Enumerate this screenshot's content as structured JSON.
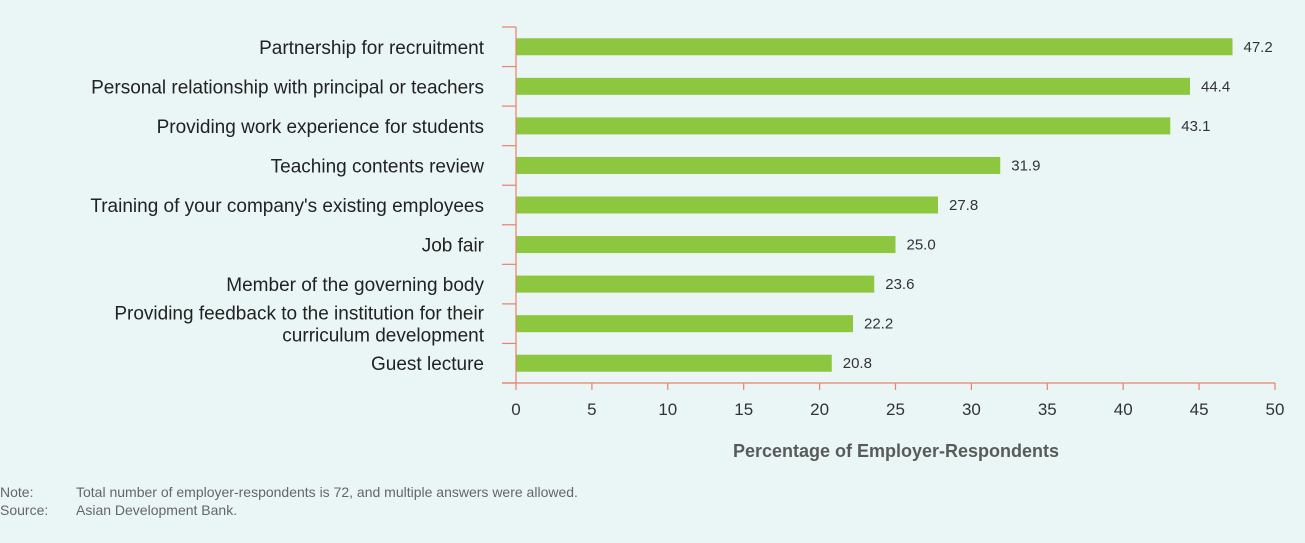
{
  "chart_data": {
    "type": "bar",
    "orientation": "horizontal",
    "categories": [
      [
        "Partnership for recruitment"
      ],
      [
        "Personal relationship with principal or teachers"
      ],
      [
        "Providing work experience for students"
      ],
      [
        "Teaching contents review"
      ],
      [
        "Training of your company's existing employees"
      ],
      [
        "Job fair"
      ],
      [
        "Member of the governing body"
      ],
      [
        "Providing feedback to the institution for their",
        "curriculum development"
      ],
      [
        "Guest lecture"
      ]
    ],
    "values": [
      47.2,
      44.4,
      43.1,
      31.9,
      27.8,
      25.0,
      23.6,
      22.2,
      20.8
    ],
    "value_labels": [
      "47.2",
      "44.4",
      "43.1",
      "31.9",
      "27.8",
      "25.0",
      "23.6",
      "22.2",
      "20.8"
    ],
    "xlabel": "Percentage of Employer-Respondents",
    "xlim": [
      0,
      50
    ],
    "xticks": [
      0,
      5,
      10,
      15,
      20,
      25,
      30,
      35,
      40,
      45,
      50
    ],
    "grid": false,
    "colors": {
      "bar": "#8dc63f",
      "axis": "#e8826a",
      "background": "#eaf6f6"
    }
  },
  "notes": {
    "note_key": "Note:",
    "note_text": "Total number of employer-respondents is 72, and multiple answers were allowed.",
    "source_key": "Source:",
    "source_text": "Asian Development Bank."
  }
}
